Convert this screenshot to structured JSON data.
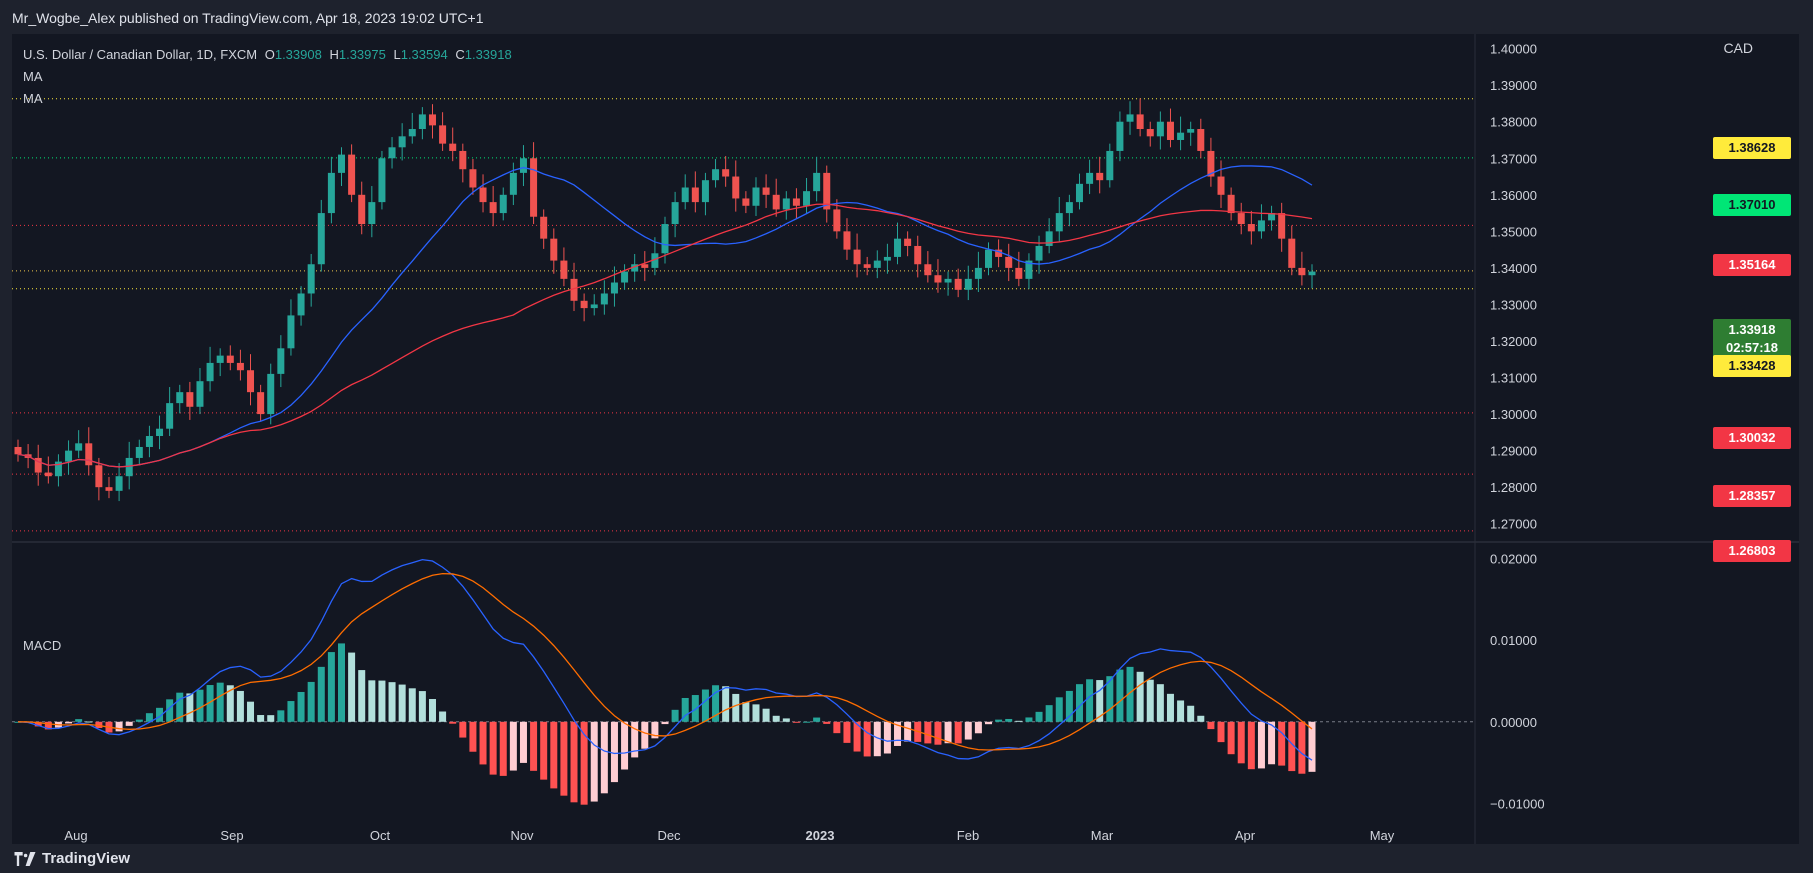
{
  "header": {
    "publisher_text": "Mr_Wogbe_Alex published on TradingView.com, Apr 18, 2023 19:02 UTC+1"
  },
  "legend": {
    "symbol": "U.S. Dollar / Canadian Dollar, 1D, FXCM",
    "open_label": "O",
    "open": "1.33908",
    "high_label": "H",
    "high": "1.33975",
    "low_label": "L",
    "low": "1.33594",
    "close_label": "C",
    "close": "1.33918",
    "ma1": "MA",
    "ma2": "MA"
  },
  "currency_label": "CAD",
  "price_axis": [
    "1.40000",
    "1.39000",
    "1.38000",
    "1.37000",
    "1.36000",
    "1.35000",
    "1.34000",
    "1.33000",
    "1.32000",
    "1.31000",
    "1.30000",
    "1.29000",
    "1.28000",
    "1.27000"
  ],
  "price_tags": [
    {
      "value": "1.38628",
      "bg": "#ffeb3b",
      "fg": "#131722"
    },
    {
      "value": "1.37010",
      "bg": "#00e676",
      "fg": "#131722"
    },
    {
      "value": "1.35164",
      "bg": "#f23645",
      "fg": "#ffffff"
    },
    {
      "value": "1.33918",
      "bg": "#2e7d32",
      "fg": "#ffffff"
    },
    {
      "value": "02:57:18",
      "bg": "#2e7d32",
      "fg": "#ffffff"
    },
    {
      "value": "1.33428",
      "bg": "#ffeb3b",
      "fg": "#131722"
    },
    {
      "value": "1.30032",
      "bg": "#f23645",
      "fg": "#ffffff"
    },
    {
      "value": "1.28357",
      "bg": "#f23645",
      "fg": "#ffffff"
    },
    {
      "value": "1.26803",
      "bg": "#f23645",
      "fg": "#ffffff"
    }
  ],
  "macd": {
    "label": "MACD",
    "axis": [
      "0.02000",
      "0.01000",
      "0.00000",
      "−0.01000"
    ]
  },
  "time_axis": [
    "Aug",
    "Sep",
    "Oct",
    "Nov",
    "Dec",
    "2023",
    "Feb",
    "Mar",
    "Apr",
    "May"
  ],
  "footer": {
    "brand": "TradingView"
  },
  "colors": {
    "up": "#26a69a",
    "down": "#ef5350",
    "ma_fast": "#2962ff",
    "ma_slow": "#f23645",
    "signal": "#ff6d00"
  },
  "chart_data": {
    "type": "candlestick",
    "title": "U.S. Dollar / Canadian Dollar, 1D, FXCM",
    "ylim": [
      1.265,
      1.404
    ],
    "ohlc_close_series": [
      1.289,
      1.288,
      1.284,
      1.283,
      1.287,
      1.29,
      1.292,
      1.286,
      1.28,
      1.279,
      1.283,
      1.288,
      1.291,
      1.294,
      1.296,
      1.303,
      1.306,
      1.302,
      1.309,
      1.314,
      1.316,
      1.314,
      1.312,
      1.306,
      1.3,
      1.311,
      1.318,
      1.327,
      1.333,
      1.341,
      1.355,
      1.366,
      1.371,
      1.36,
      1.352,
      1.358,
      1.37,
      1.373,
      1.376,
      1.378,
      1.382,
      1.379,
      1.374,
      1.372,
      1.367,
      1.362,
      1.358,
      1.355,
      1.36,
      1.366,
      1.37,
      1.354,
      1.348,
      1.342,
      1.337,
      1.331,
      1.329,
      1.33,
      1.333,
      1.336,
      1.339,
      1.341,
      1.34,
      1.344,
      1.352,
      1.358,
      1.362,
      1.358,
      1.364,
      1.367,
      1.365,
      1.359,
      1.357,
      1.362,
      1.36,
      1.356,
      1.359,
      1.357,
      1.361,
      1.366,
      1.356,
      1.35,
      1.345,
      1.341,
      1.34,
      1.342,
      1.343,
      1.348,
      1.346,
      1.341,
      1.338,
      1.336,
      1.337,
      1.334,
      1.337,
      1.34,
      1.345,
      1.343,
      1.34,
      1.337,
      1.342,
      1.346,
      1.35,
      1.355,
      1.358,
      1.363,
      1.366,
      1.364,
      1.372,
      1.38,
      1.382,
      1.378,
      1.376,
      1.38,
      1.375,
      1.377,
      1.378,
      1.372,
      1.365,
      1.36,
      1.355,
      1.352,
      1.35,
      1.353,
      1.355,
      1.348,
      1.34,
      1.338,
      1.339
    ]
  }
}
